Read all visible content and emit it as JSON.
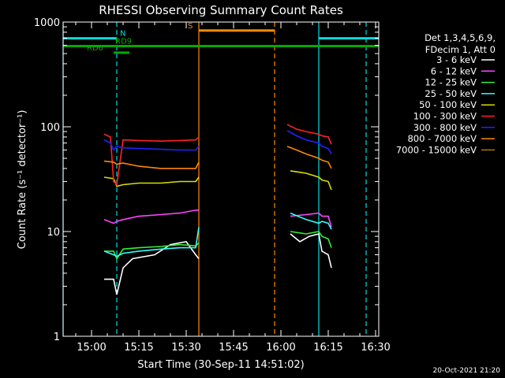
{
  "footer": {
    "stamp": "20-Oct-2021 21:20"
  },
  "chart_data": {
    "type": "line",
    "title": "RHESSI Observing Summary Count Rates",
    "xlabel": "Start Time (30-Sep-11 14:51:02)",
    "ylabel": "Count Rate (s⁻¹ detector⁻¹)",
    "yscale": "log",
    "xlim": [
      "14:51",
      "16:31"
    ],
    "ylim": [
      1,
      1000
    ],
    "x_ticks": [
      "15:00",
      "15:15",
      "15:30",
      "15:45",
      "16:00",
      "16:15",
      "16:30"
    ],
    "y_ticks": [
      {
        "value": 1,
        "label": "1"
      },
      {
        "value": 10,
        "label": "10"
      },
      {
        "value": 100,
        "label": "100"
      },
      {
        "value": 1000,
        "label": "1000"
      }
    ],
    "legend_header": [
      "Det 1,3,4,5,6,9,",
      "FDecim 1, Att 0"
    ],
    "legend_position": "right",
    "series": [
      {
        "name": "3 - 6 keV",
        "color": "#ffffff",
        "segments": [
          {
            "x": [
              "15:04",
              "15:07",
              "15:08",
              "15:10",
              "15:13",
              "15:20",
              "15:25",
              "15:30",
              "15:33",
              "15:34"
            ],
            "y": [
              3.5,
              3.5,
              2.5,
              4.5,
              5.5,
              6,
              7.5,
              8,
              6,
              5.5
            ]
          },
          {
            "x": [
              "16:03",
              "16:06",
              "16:09",
              "16:12",
              "16:13",
              "16:15",
              "16:16"
            ],
            "y": [
              9.5,
              8,
              9,
              9.5,
              6.5,
              6,
              4.5
            ]
          }
        ]
      },
      {
        "name": "6 - 12 keV",
        "color": "#ff44ff",
        "segments": [
          {
            "x": [
              "15:04",
              "15:07",
              "15:08",
              "15:10",
              "15:15",
              "15:22",
              "15:28",
              "15:33",
              "15:34"
            ],
            "y": [
              13,
              12,
              12.5,
              13,
              14,
              14.5,
              15,
              16,
              16
            ]
          },
          {
            "x": [
              "16:03",
              "16:08",
              "16:12",
              "16:13",
              "16:15",
              "16:16"
            ],
            "y": [
              14,
              14.5,
              15,
              14,
              14,
              11
            ]
          }
        ]
      },
      {
        "name": "12 - 25 keV",
        "color": "#33ee33",
        "segments": [
          {
            "x": [
              "15:04",
              "15:07",
              "15:08",
              "15:10",
              "15:15",
              "15:22",
              "15:28",
              "15:33",
              "15:34"
            ],
            "y": [
              6.5,
              6.5,
              5.5,
              6.8,
              7,
              7.2,
              7.5,
              7.3,
              7.8
            ]
          },
          {
            "x": [
              "16:03",
              "16:08",
              "16:12",
              "16:13",
              "16:15",
              "16:16"
            ],
            "y": [
              10,
              9.5,
              10,
              9,
              8.5,
              7
            ]
          }
        ]
      },
      {
        "name": "25 - 50 keV",
        "color": "#33ffff",
        "segments": [
          {
            "x": [
              "15:04",
              "15:07",
              "15:08",
              "15:10",
              "15:15",
              "15:22",
              "15:28",
              "15:33",
              "15:34"
            ],
            "y": [
              6.5,
              6,
              5.8,
              6.2,
              6.5,
              6.8,
              7,
              7,
              11
            ]
          },
          {
            "x": [
              "16:03",
              "16:08",
              "16:12",
              "16:13",
              "16:15",
              "16:16"
            ],
            "y": [
              15,
              13,
              12,
              12.5,
              12,
              10.5
            ]
          }
        ]
      },
      {
        "name": "50 - 100 keV",
        "color": "#dddd00",
        "segments": [
          {
            "x": [
              "15:04",
              "15:07",
              "15:08",
              "15:10",
              "15:15",
              "15:22",
              "15:28",
              "15:33",
              "15:34"
            ],
            "y": [
              33,
              32,
              27,
              28,
              29,
              29,
              30,
              30,
              33
            ]
          },
          {
            "x": [
              "16:03",
              "16:08",
              "16:12",
              "16:13",
              "16:15",
              "16:16"
            ],
            "y": [
              38,
              36,
              33,
              31,
              30,
              25
            ]
          }
        ]
      },
      {
        "name": "100 - 300 keV",
        "color": "#ff2222",
        "segments": [
          {
            "x": [
              "15:04",
              "15:06",
              "15:07",
              "15:08",
              "15:10",
              "15:15",
              "15:22",
              "15:28",
              "15:33",
              "15:34"
            ],
            "y": [
              85,
              80,
              30,
              28,
              75,
              74,
              73,
              74,
              75,
              80
            ]
          },
          {
            "x": [
              "16:02",
              "16:05",
              "16:08",
              "16:12",
              "16:13",
              "16:15",
              "16:16"
            ],
            "y": [
              105,
              95,
              90,
              85,
              82,
              80,
              68
            ]
          }
        ]
      },
      {
        "name": "300 - 800 keV",
        "color": "#2222ff",
        "segments": [
          {
            "x": [
              "15:04",
              "15:06",
              "15:07",
              "15:08",
              "15:10",
              "15:15",
              "15:22",
              "15:28",
              "15:33",
              "15:34"
            ],
            "y": [
              75,
              70,
              60,
              65,
              63,
              62,
              61,
              60,
              60,
              65
            ]
          },
          {
            "x": [
              "16:02",
              "16:05",
              "16:08",
              "16:12",
              "16:13",
              "16:15",
              "16:16"
            ],
            "y": [
              92,
              82,
              75,
              70,
              65,
              62,
              55
            ]
          }
        ]
      },
      {
        "name": "800 - 7000 keV",
        "color": "#ff8800",
        "segments": [
          {
            "x": [
              "15:04",
              "15:07",
              "15:08",
              "15:10",
              "15:15",
              "15:22",
              "15:28",
              "15:33",
              "15:34"
            ],
            "y": [
              47,
              46,
              44,
              45,
              42,
              40,
              40,
              40,
              46
            ]
          },
          {
            "x": [
              "16:02",
              "16:05",
              "16:08",
              "16:12",
              "16:13",
              "16:15",
              "16:16"
            ],
            "y": [
              65,
              60,
              55,
              50,
              48,
              46,
              40
            ]
          }
        ]
      },
      {
        "name": "7000 - 15000 keV",
        "color": "#aa7700",
        "segments": []
      }
    ],
    "vertical_lines": [
      {
        "x": "14:51",
        "color": "#00dddd",
        "style": "solid"
      },
      {
        "x": "15:08",
        "color": "#00dddd",
        "style": "dashed"
      },
      {
        "x": "15:34",
        "color": "#ff8800",
        "style": "solid"
      },
      {
        "x": "15:58",
        "color": "#ff8800",
        "style": "dashed"
      },
      {
        "x": "16:12",
        "color": "#00dddd",
        "style": "solid"
      },
      {
        "x": "16:27",
        "color": "#00dddd",
        "style": "dashed"
      }
    ],
    "annotations": [
      {
        "label": "N",
        "color": "#00dddd",
        "x_start": "14:51",
        "x_end": "15:08",
        "y": 700
      },
      {
        "label": "",
        "color": "#00dddd",
        "x_start": "16:12",
        "x_end": "16:31",
        "y": 700
      },
      {
        "label": "S",
        "color": "#ff8800",
        "x_start": "15:34",
        "x_end": "15:58",
        "y": 830
      },
      {
        "label": "RD9",
        "color": "#00aa00",
        "x_start": "14:51",
        "x_end": "16:31",
        "y": 590
      },
      {
        "label": "RD6",
        "color": "#00aa00",
        "x_start": "15:07",
        "x_end": "15:12",
        "y": 510
      }
    ]
  }
}
